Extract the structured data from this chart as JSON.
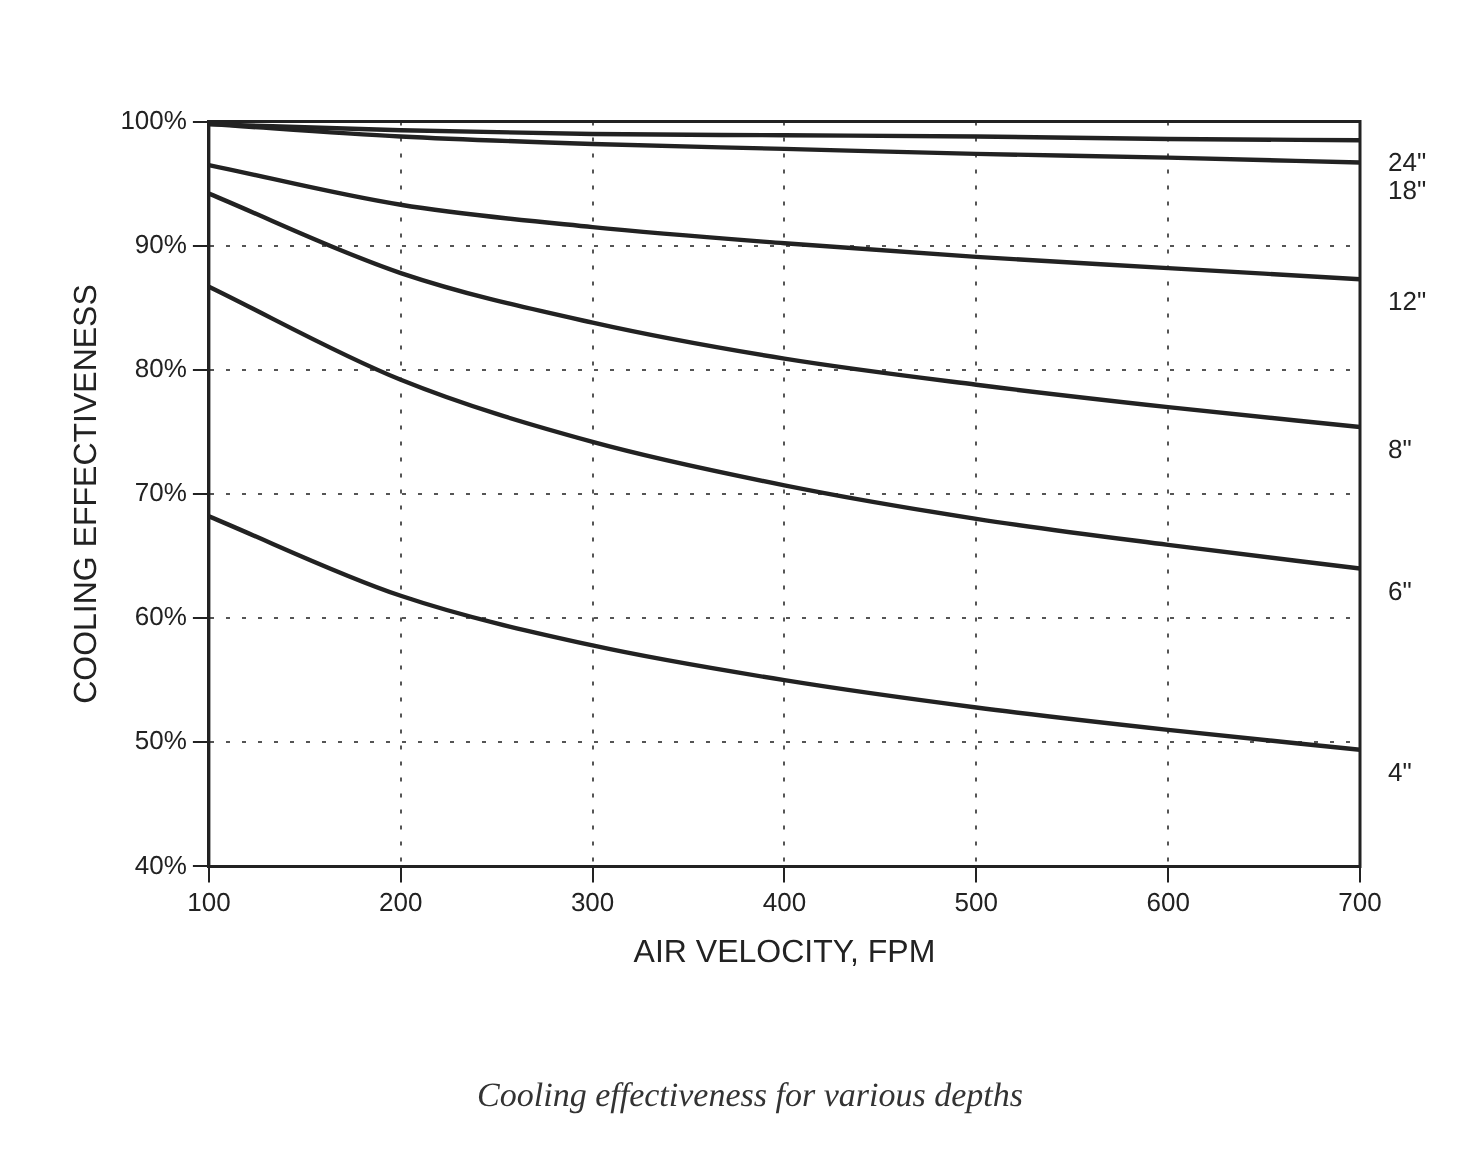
{
  "chart_data": {
    "type": "line",
    "xlabel": "AIR VELOCITY, FPM",
    "ylabel": "COOLING EFFECTIVENESS",
    "annotations": [
      "Cooling effectiveness for various depths"
    ],
    "x": [
      100,
      200,
      300,
      400,
      500,
      600,
      700
    ],
    "series": [
      {
        "name": "24\"",
        "color": "#222222",
        "values": [
          99.8,
          99.3,
          99.0,
          98.9,
          98.8,
          98.6,
          98.5
        ]
      },
      {
        "name": "18\"",
        "color": "#222222",
        "values": [
          99.8,
          98.8,
          98.2,
          97.8,
          97.4,
          97.1,
          96.7
        ]
      },
      {
        "name": "12\"",
        "color": "#222222",
        "values": [
          96.5,
          93.3,
          91.5,
          90.2,
          89.1,
          88.2,
          87.3
        ]
      },
      {
        "name": "8\"",
        "color": "#222222",
        "values": [
          94.2,
          87.8,
          83.8,
          80.9,
          78.8,
          77.0,
          75.4
        ]
      },
      {
        "name": "6\"",
        "color": "#222222",
        "values": [
          86.7,
          79.2,
          74.2,
          70.7,
          68.0,
          65.9,
          64.0
        ]
      },
      {
        "name": "4\"",
        "color": "#222222",
        "values": [
          68.2,
          61.8,
          57.8,
          55.0,
          52.8,
          51.0,
          49.4
        ]
      }
    ],
    "xlim": [
      100,
      700
    ],
    "xticks": [
      100,
      200,
      300,
      400,
      500,
      600,
      700
    ],
    "ylim": [
      40,
      100
    ],
    "yticks": [
      {
        "value": 40,
        "label": "40%"
      },
      {
        "value": 50,
        "label": "50%"
      },
      {
        "value": 60,
        "label": "60%"
      },
      {
        "value": 70,
        "label": "70%"
      },
      {
        "value": 80,
        "label": "80%"
      },
      {
        "value": 90,
        "label": "90%"
      },
      {
        "value": 100,
        "label": "100%"
      }
    ],
    "grid": true,
    "legend": false,
    "marker": "none",
    "line_style": "solid"
  }
}
